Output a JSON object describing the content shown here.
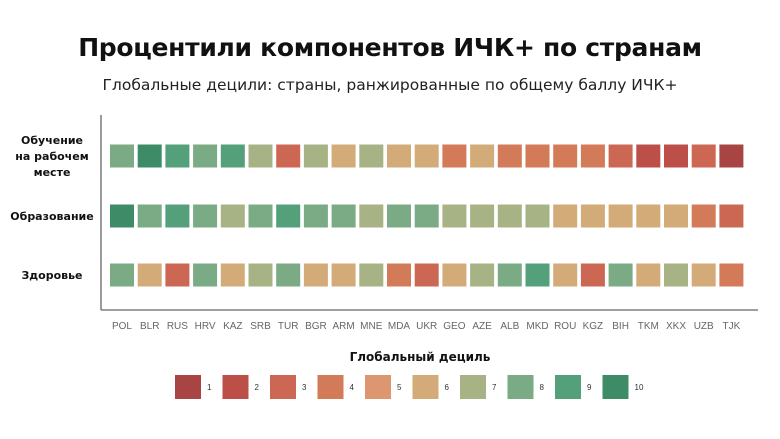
{
  "chart_data": {
    "type": "heatmap",
    "title": "Процентили компонентов ИЧК+ по странам",
    "subtitle": "Глобальные децили: страны, ранжированные по общему баллу ИЧК+",
    "x": [
      "POL",
      "BLR",
      "RUS",
      "HRV",
      "KAZ",
      "SRB",
      "TUR",
      "BGR",
      "ARM",
      "MNE",
      "MDA",
      "UKR",
      "GEO",
      "AZE",
      "ALB",
      "MKD",
      "ROU",
      "KGZ",
      "BIH",
      "TKM",
      "XKX",
      "UZB",
      "TJK"
    ],
    "y": [
      "Обучение\nна рабочем\nместе",
      "Образование",
      "Здоровье"
    ],
    "values": [
      [
        8,
        10,
        9,
        8,
        9,
        7,
        3,
        7,
        6,
        7,
        6,
        6,
        4,
        6,
        4,
        4,
        4,
        4,
        3,
        2,
        2,
        3,
        1
      ],
      [
        10,
        8,
        9,
        8,
        7,
        8,
        9,
        8,
        8,
        7,
        8,
        8,
        7,
        7,
        7,
        7,
        6,
        6,
        6,
        6,
        6,
        4,
        3
      ],
      [
        8,
        6,
        3,
        8,
        6,
        7,
        8,
        6,
        6,
        7,
        4,
        3,
        6,
        7,
        8,
        9,
        6,
        3,
        8,
        6,
        7,
        6,
        4
      ]
    ],
    "legend_title": "Глобальный дециль",
    "legend": [
      1,
      2,
      3,
      4,
      5,
      6,
      7,
      8,
      9,
      10
    ],
    "colors": {
      "1": "#a84443",
      "2": "#bc5049",
      "3": "#cc6754",
      "4": "#d37a58",
      "5": "#dc9770",
      "6": "#d3ab78",
      "7": "#a8b385",
      "8": "#7aab84",
      "9": "#53a07a",
      "10": "#3d8c67"
    },
    "axis_color": "#666666"
  }
}
